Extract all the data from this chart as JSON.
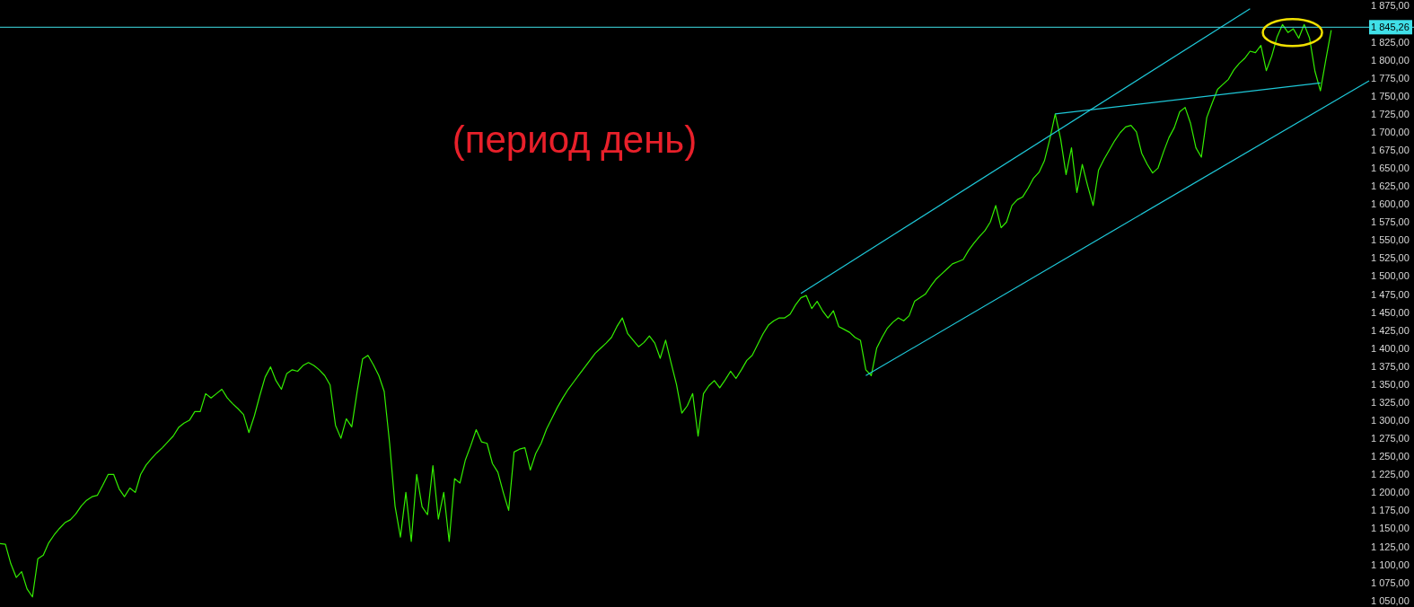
{
  "chart_data": {
    "type": "line",
    "title": "(период день)",
    "tick_labels": "y",
    "ylim": [
      1041,
      1883
    ],
    "categories": [
      null,
      null,
      null,
      null,
      null,
      null,
      null,
      null,
      null,
      null,
      null,
      null,
      null,
      null,
      null,
      null,
      null,
      null,
      null,
      null,
      null,
      null,
      null,
      null,
      null,
      null,
      null,
      null,
      null,
      null,
      null,
      null,
      null,
      null,
      null,
      null,
      null,
      null,
      null,
      null,
      null,
      null,
      null,
      null,
      null,
      null,
      null,
      null,
      null,
      null,
      null,
      null,
      null,
      null,
      null,
      null,
      null,
      null,
      null,
      null,
      null,
      null,
      null,
      null,
      null,
      null,
      null,
      null,
      null,
      null,
      null,
      null,
      null,
      null,
      null,
      null,
      null,
      null,
      null,
      null,
      null,
      null,
      null,
      null,
      null,
      null,
      null,
      null,
      null,
      null,
      null,
      null,
      null,
      null,
      null,
      null,
      null,
      null,
      null,
      null,
      null,
      null,
      null,
      null,
      null,
      null,
      null,
      null,
      null,
      null,
      null,
      null,
      null,
      null,
      null,
      null,
      null,
      null,
      null,
      null,
      null,
      null,
      null,
      null,
      null,
      null,
      null,
      null,
      null,
      null,
      null,
      null,
      null,
      null,
      null,
      null,
      null,
      null,
      null,
      null,
      null,
      null,
      null,
      null,
      null,
      null,
      null,
      null,
      null,
      null,
      null,
      null,
      null,
      null,
      null,
      null,
      null,
      null,
      null,
      null,
      null,
      null,
      null,
      null,
      null,
      null,
      null,
      null,
      null,
      null,
      null,
      null,
      null,
      null,
      null,
      null,
      null,
      null,
      null,
      null,
      null,
      null,
      null,
      null,
      null,
      null,
      null,
      null,
      null,
      null,
      null,
      null,
      null,
      null,
      null,
      null,
      null,
      null,
      null,
      null,
      null,
      null,
      null,
      null,
      null,
      null,
      null,
      null,
      null,
      null,
      null,
      null,
      null,
      null,
      null,
      null,
      null,
      null,
      null,
      null,
      null,
      null,
      null,
      null,
      null,
      null,
      null,
      null,
      null,
      null,
      null,
      null,
      null,
      null,
      null,
      null,
      null,
      null,
      null,
      null,
      null,
      null,
      null,
      null,
      null,
      null,
      null,
      null,
      null,
      null,
      null,
      null,
      null,
      null
    ],
    "yticks": [
      {
        "value": 1050,
        "label": "1 050,00"
      },
      {
        "value": 1075,
        "label": "1 075,00"
      },
      {
        "value": 1100,
        "label": "1 100,00"
      },
      {
        "value": 1125,
        "label": "1 125,00"
      },
      {
        "value": 1150,
        "label": "1 150,00"
      },
      {
        "value": 1175,
        "label": "1 175,00"
      },
      {
        "value": 1200,
        "label": "1 200,00"
      },
      {
        "value": 1225,
        "label": "1 225,00"
      },
      {
        "value": 1250,
        "label": "1 250,00"
      },
      {
        "value": 1275,
        "label": "1 275,00"
      },
      {
        "value": 1300,
        "label": "1 300,00"
      },
      {
        "value": 1325,
        "label": "1 325,00"
      },
      {
        "value": 1350,
        "label": "1 350,00"
      },
      {
        "value": 1375,
        "label": "1 375,00"
      },
      {
        "value": 1400,
        "label": "1 400,00"
      },
      {
        "value": 1425,
        "label": "1 425,00"
      },
      {
        "value": 1450,
        "label": "1 450,00"
      },
      {
        "value": 1475,
        "label": "1 475,00"
      },
      {
        "value": 1500,
        "label": "1 500,00"
      },
      {
        "value": 1525,
        "label": "1 525,00"
      },
      {
        "value": 1550,
        "label": "1 550,00"
      },
      {
        "value": 1575,
        "label": "1 575,00"
      },
      {
        "value": 1600,
        "label": "1 600,00"
      },
      {
        "value": 1625,
        "label": "1 625,00"
      },
      {
        "value": 1650,
        "label": "1 650,00"
      },
      {
        "value": 1675,
        "label": "1 675,00"
      },
      {
        "value": 1700,
        "label": "1 700,00"
      },
      {
        "value": 1725,
        "label": "1 725,00"
      },
      {
        "value": 1750,
        "label": "1 750,00"
      },
      {
        "value": 1775,
        "label": "1 775,00"
      },
      {
        "value": 1800,
        "label": "1 800,00"
      },
      {
        "value": 1825,
        "label": "1 825,00"
      },
      {
        "value": 1875,
        "label": "1 875,00"
      }
    ],
    "ref_lines": [
      {
        "axis": "y",
        "value": 1845.26,
        "label": "1 845,26",
        "color": "#40e0e8"
      }
    ],
    "series": [
      {
        "color": "#33ee00",
        "values": [
          1129,
          1128,
          1101,
          1082,
          1090,
          1066,
          1055,
          1108,
          1113,
          1130,
          1141,
          1150,
          1158,
          1162,
          1170,
          1181,
          1189,
          1194,
          1196,
          1210,
          1225,
          1225,
          1205,
          1194,
          1206,
          1200,
          1225,
          1238,
          1247,
          1255,
          1262,
          1270,
          1278,
          1290,
          1296,
          1300,
          1312,
          1312,
          1337,
          1331,
          1337,
          1343,
          1331,
          1323,
          1316,
          1308,
          1283,
          1306,
          1334,
          1360,
          1374,
          1355,
          1343,
          1365,
          1370,
          1368,
          1376,
          1380,
          1376,
          1370,
          1362,
          1349,
          1293,
          1275,
          1302,
          1291,
          1340,
          1385,
          1390,
          1377,
          1362,
          1340,
          1268,
          1181,
          1138,
          1200,
          1132,
          1225,
          1180,
          1169,
          1237,
          1163,
          1200,
          1132,
          1219,
          1213,
          1245,
          1265,
          1287,
          1270,
          1268,
          1240,
          1228,
          1200,
          1175,
          1256,
          1260,
          1262,
          1231,
          1254,
          1268,
          1288,
          1303,
          1318,
          1331,
          1343,
          1353,
          1363,
          1373,
          1383,
          1393,
          1400,
          1407,
          1415,
          1430,
          1442,
          1420,
          1411,
          1402,
          1408,
          1417,
          1407,
          1386,
          1411,
          1380,
          1350,
          1310,
          1320,
          1337,
          1278,
          1337,
          1348,
          1355,
          1345,
          1356,
          1368,
          1358,
          1370,
          1383,
          1390,
          1405,
          1420,
          1432,
          1438,
          1442,
          1442,
          1447,
          1460,
          1470,
          1473,
          1455,
          1465,
          1452,
          1442,
          1452,
          1430,
          1426,
          1422,
          1415,
          1411,
          1370,
          1362,
          1400,
          1415,
          1428,
          1436,
          1442,
          1438,
          1445,
          1465,
          1470,
          1475,
          1486,
          1496,
          1503,
          1510,
          1517,
          1520,
          1523,
          1536,
          1546,
          1555,
          1563,
          1575,
          1598,
          1567,
          1575,
          1598,
          1606,
          1610,
          1622,
          1636,
          1644,
          1660,
          1690,
          1725,
          1690,
          1641,
          1678,
          1616,
          1655,
          1625,
          1598,
          1647,
          1662,
          1675,
          1688,
          1699,
          1707,
          1709,
          1700,
          1670,
          1655,
          1643,
          1650,
          1672,
          1692,
          1706,
          1728,
          1734,
          1712,
          1678,
          1665,
          1720,
          1740,
          1759,
          1766,
          1773,
          1786,
          1795,
          1802,
          1812,
          1810,
          1820,
          1785,
          1805,
          1832,
          1849,
          1838,
          1843,
          1830,
          1849,
          1830,
          1784,
          1757,
          1800,
          1841,
          null,
          null,
          null,
          null,
          null,
          null,
          null
        ]
      },
      {
        "type": "line",
        "color": "#1ec8d8",
        "values": [
          null,
          null,
          null,
          null,
          null,
          null,
          null,
          null,
          null,
          null,
          null,
          null,
          null,
          null,
          null,
          null,
          null,
          null,
          null,
          null,
          null,
          null,
          null,
          null,
          null,
          null,
          null,
          null,
          null,
          null,
          null,
          null,
          null,
          null,
          null,
          null,
          null,
          null,
          null,
          null,
          null,
          null,
          null,
          null,
          null,
          null,
          null,
          null,
          null,
          null,
          null,
          null,
          null,
          null,
          null,
          null,
          null,
          null,
          null,
          null,
          null,
          null,
          null,
          null,
          null,
          null,
          null,
          null,
          null,
          null,
          null,
          null,
          null,
          null,
          null,
          null,
          null,
          null,
          null,
          null,
          null,
          null,
          null,
          null,
          null,
          null,
          null,
          null,
          null,
          null,
          null,
          null,
          null,
          null,
          null,
          null,
          null,
          null,
          null,
          null,
          null,
          null,
          null,
          null,
          null,
          null,
          null,
          null,
          null,
          null,
          null,
          null,
          null,
          null,
          null,
          null,
          null,
          null,
          null,
          null,
          null,
          null,
          null,
          null,
          null,
          null,
          null,
          null,
          null,
          null,
          null,
          null,
          null,
          null,
          null,
          null,
          null,
          null,
          null,
          null,
          null,
          null,
          null,
          null,
          null,
          null,
          null,
          null,
          1476,
          null,
          null,
          null,
          null,
          null,
          null,
          null,
          null,
          null,
          null,
          null,
          null,
          null,
          null,
          null,
          null,
          null,
          null,
          null,
          null,
          null,
          null,
          null,
          null,
          null,
          null,
          null,
          null,
          null,
          null,
          null,
          null,
          null,
          null,
          null,
          null,
          null,
          null,
          null,
          null,
          null,
          null,
          null,
          null,
          null,
          null,
          null,
          null,
          null,
          null,
          null,
          null,
          null,
          null,
          null,
          null,
          null,
          null,
          null,
          null,
          null,
          null,
          null,
          null,
          null,
          null,
          null,
          null,
          null,
          null,
          null,
          null,
          null,
          null,
          null,
          null,
          null,
          null,
          null,
          null,
          null,
          null,
          1871,
          null,
          null,
          null,
          null,
          null,
          null,
          null,
          null,
          null,
          null,
          null,
          null,
          null,
          null,
          null,
          null,
          null,
          null,
          null,
          null,
          null,
          null
        ]
      },
      {
        "type": "line",
        "color": "#1ec8d8",
        "values": [
          null,
          null,
          null,
          null,
          null,
          null,
          null,
          null,
          null,
          null,
          null,
          null,
          null,
          null,
          null,
          null,
          null,
          null,
          null,
          null,
          null,
          null,
          null,
          null,
          null,
          null,
          null,
          null,
          null,
          null,
          null,
          null,
          null,
          null,
          null,
          null,
          null,
          null,
          null,
          null,
          null,
          null,
          null,
          null,
          null,
          null,
          null,
          null,
          null,
          null,
          null,
          null,
          null,
          null,
          null,
          null,
          null,
          null,
          null,
          null,
          null,
          null,
          null,
          null,
          null,
          null,
          null,
          null,
          null,
          null,
          null,
          null,
          null,
          null,
          null,
          null,
          null,
          null,
          null,
          null,
          null,
          null,
          null,
          null,
          null,
          null,
          null,
          null,
          null,
          null,
          null,
          null,
          null,
          null,
          null,
          null,
          null,
          null,
          null,
          null,
          null,
          null,
          null,
          null,
          null,
          null,
          null,
          null,
          null,
          null,
          null,
          null,
          null,
          null,
          null,
          null,
          null,
          null,
          null,
          null,
          null,
          null,
          null,
          null,
          null,
          null,
          null,
          null,
          null,
          null,
          null,
          null,
          null,
          null,
          null,
          null,
          null,
          null,
          null,
          null,
          null,
          null,
          null,
          null,
          null,
          null,
          null,
          null,
          null,
          null,
          null,
          null,
          null,
          null,
          null,
          null,
          null,
          null,
          null,
          null,
          1362,
          null,
          null,
          null,
          null,
          null,
          null,
          null,
          null,
          null,
          null,
          null,
          null,
          null,
          null,
          null,
          null,
          null,
          null,
          null,
          null,
          null,
          null,
          null,
          null,
          null,
          null,
          null,
          null,
          null,
          null,
          null,
          null,
          null,
          null,
          null,
          null,
          null,
          null,
          null,
          null,
          null,
          null,
          null,
          null,
          null,
          null,
          null,
          null,
          null,
          null,
          null,
          null,
          null,
          null,
          null,
          null,
          null,
          null,
          null,
          null,
          null,
          null,
          null,
          null,
          null,
          null,
          null,
          null,
          null,
          null,
          null,
          null,
          null,
          null,
          null,
          null,
          null,
          null,
          null,
          null,
          null,
          null,
          null,
          null,
          null,
          null,
          null,
          null,
          null,
          null,
          null,
          null,
          1771
        ]
      },
      {
        "type": "line",
        "color": "#1ec8d8",
        "values": [
          null,
          null,
          null,
          null,
          null,
          null,
          null,
          null,
          null,
          null,
          null,
          null,
          null,
          null,
          null,
          null,
          null,
          null,
          null,
          null,
          null,
          null,
          null,
          null,
          null,
          null,
          null,
          null,
          null,
          null,
          null,
          null,
          null,
          null,
          null,
          null,
          null,
          null,
          null,
          null,
          null,
          null,
          null,
          null,
          null,
          null,
          null,
          null,
          null,
          null,
          null,
          null,
          null,
          null,
          null,
          null,
          null,
          null,
          null,
          null,
          null,
          null,
          null,
          null,
          null,
          null,
          null,
          null,
          null,
          null,
          null,
          null,
          null,
          null,
          null,
          null,
          null,
          null,
          null,
          null,
          null,
          null,
          null,
          null,
          null,
          null,
          null,
          null,
          null,
          null,
          null,
          null,
          null,
          null,
          null,
          null,
          null,
          null,
          null,
          null,
          null,
          null,
          null,
          null,
          null,
          null,
          null,
          null,
          null,
          null,
          null,
          null,
          null,
          null,
          null,
          null,
          null,
          null,
          null,
          null,
          null,
          null,
          null,
          null,
          null,
          null,
          null,
          null,
          null,
          null,
          null,
          null,
          null,
          null,
          null,
          null,
          null,
          null,
          null,
          null,
          null,
          null,
          null,
          null,
          null,
          null,
          null,
          null,
          null,
          null,
          null,
          null,
          null,
          null,
          null,
          null,
          null,
          null,
          null,
          null,
          null,
          null,
          null,
          null,
          null,
          null,
          null,
          null,
          null,
          null,
          null,
          null,
          null,
          null,
          null,
          null,
          null,
          null,
          null,
          null,
          null,
          null,
          null,
          null,
          null,
          null,
          null,
          null,
          null,
          null,
          null,
          null,
          null,
          null,
          null,
          1725,
          null,
          null,
          null,
          null,
          null,
          null,
          null,
          null,
          null,
          null,
          null,
          null,
          null,
          null,
          null,
          null,
          null,
          null,
          null,
          null,
          null,
          null,
          null,
          null,
          null,
          null,
          null,
          null,
          null,
          null,
          null,
          null,
          null,
          null,
          null,
          null,
          null,
          null,
          null,
          null,
          null,
          null,
          null,
          null,
          null,
          null,
          null,
          null,
          1768,
          null,
          null,
          null,
          null,
          null,
          null,
          null,
          null,
          null
        ]
      }
    ]
  }
}
